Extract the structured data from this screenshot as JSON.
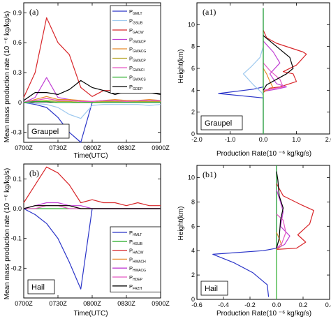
{
  "figure": {
    "ylabel_left": "Mean mass production rate (10 ⁻⁶ kg/kg/s)",
    "y_label_height": "Height(km)",
    "xlabel_time": "Time(UTC)",
    "xlabel_rate": "Production Rate(10 ⁻⁶ kg/kg/s)"
  },
  "chart_data": [
    {
      "id": "a",
      "type": "line",
      "panel_label": "(a)",
      "box_label": "Graupel",
      "xlabel": "Time(UTC)",
      "ylabel": "Mean mass production rate (10 ⁻⁶ kg/kg/s)",
      "x": [
        "07:00",
        "07:10",
        "07:20",
        "07:30",
        "07:40",
        "07:50",
        "08:00",
        "08:10",
        "08:20",
        "08:30",
        "08:40",
        "08:50",
        "09:00"
      ],
      "xticks": [
        "0700Z",
        "0730Z",
        "0800Z",
        "0830Z",
        "0900Z"
      ],
      "xlim": [
        "07:00",
        "09:00"
      ],
      "ylim": [
        -0.4,
        1.0
      ],
      "yticks": [
        "-0.3",
        "0",
        "0.3",
        "0.6",
        "0.9"
      ],
      "series": [
        {
          "name": "P_GMLT",
          "main": "P",
          "sub": "GMLT",
          "color": "#2a34c8",
          "values": [
            0,
            -0.02,
            -0.05,
            -0.15,
            -0.3,
            -0.4,
            0,
            0,
            0,
            0,
            0,
            0,
            0
          ]
        },
        {
          "name": "P_GSUB",
          "main": "P",
          "sub": "GSUB",
          "color": "#9ec9ef",
          "values": [
            0,
            -0.01,
            -0.02,
            -0.05,
            -0.12,
            -0.16,
            -0.03,
            -0.02,
            -0.02,
            -0.02,
            -0.02,
            -0.03,
            -0.02
          ]
        },
        {
          "name": "P_GACW",
          "main": "P",
          "sub": "GACW",
          "color": "#d8262a",
          "values": [
            0.05,
            0.3,
            0.85,
            0.6,
            0.48,
            0.15,
            0.06,
            0.12,
            0.12,
            0.1,
            0.11,
            0.13,
            0.1
          ]
        },
        {
          "name": "P_GWACP",
          "main": "P",
          "sub": "GWACP",
          "color": "#c03fd4",
          "values": [
            0,
            0.05,
            0.25,
            0.05,
            0.03,
            0.01,
            0,
            0.01,
            0.02,
            0.01,
            0.01,
            0.02,
            0.01
          ]
        },
        {
          "name": "P_GWACG",
          "main": "P",
          "sub": "GWACG",
          "color": "#e88a2a",
          "values": [
            0,
            0.03,
            0.06,
            0.03,
            0.03,
            0.02,
            0.01,
            0.02,
            0.03,
            0.02,
            0.02,
            0.03,
            0.02
          ]
        },
        {
          "name": "P_GWACP2",
          "main": "P",
          "sub": "GWACP",
          "color": "#b8a62c",
          "values": [
            0,
            0.01,
            0.02,
            0.01,
            0.01,
            0,
            0,
            0.01,
            0.01,
            0.01,
            0.01,
            0.01,
            0.01
          ]
        },
        {
          "name": "P_GWACI",
          "main": "P",
          "sub": "GWACI",
          "color": "#e357c2",
          "values": [
            0,
            0.02,
            0.04,
            0.02,
            0.02,
            0.01,
            0.01,
            0.02,
            0.02,
            0.01,
            0.02,
            0.02,
            0.02
          ]
        },
        {
          "name": "P_GWACS",
          "main": "P",
          "sub": "GWACS",
          "color": "#2cae2c",
          "values": [
            0,
            0.01,
            0.01,
            0,
            0,
            0,
            0,
            0,
            0,
            0,
            0,
            0,
            0
          ]
        },
        {
          "name": "P_GDEP",
          "main": "P",
          "sub": "GDEP",
          "color": "#000000",
          "values": [
            0.02,
            0.1,
            0.1,
            0.08,
            0.13,
            0.22,
            0.15,
            0.12,
            0.08,
            0.11,
            0.15,
            0.1,
            0.08
          ]
        }
      ]
    },
    {
      "id": "a1",
      "type": "line",
      "panel_label": "(a1)",
      "box_label": "Graupel",
      "xlabel": "Production Rate(10 ⁻⁶ kg/kg/s)",
      "ylabel": "Height(km)",
      "xlim": [
        -2.0,
        2.0
      ],
      "xticks": [
        "-2.0",
        "-1.0",
        "0.0",
        "1.0",
        "2.0"
      ],
      "ylim": [
        0,
        12
      ],
      "yticks": [
        "0",
        "2",
        "4",
        "6",
        "8",
        "10"
      ],
      "series": [
        {
          "name": "P_GMLT",
          "color": "#2a34c8",
          "points": [
            [
              0,
              0
            ],
            [
              0,
              2
            ],
            [
              0,
              3.3
            ],
            [
              -1.35,
              3.7
            ],
            [
              -0.3,
              4.1
            ],
            [
              0,
              4.3
            ],
            [
              0,
              11.5
            ]
          ]
        },
        {
          "name": "P_GSUB",
          "color": "#9ec9ef",
          "points": [
            [
              0,
              0
            ],
            [
              0,
              2
            ],
            [
              0,
              3.5
            ],
            [
              -0.05,
              3.8
            ],
            [
              -0.3,
              4.5
            ],
            [
              -0.6,
              5.5
            ],
            [
              -0.35,
              6.2
            ],
            [
              -0.1,
              7
            ],
            [
              0,
              8
            ]
          ]
        },
        {
          "name": "P_GACW",
          "color": "#d8262a",
          "points": [
            [
              0,
              3.8
            ],
            [
              0.2,
              4.2
            ],
            [
              0.5,
              4.3
            ],
            [
              1,
              4.8
            ],
            [
              0.9,
              5.5
            ],
            [
              0.6,
              5.7
            ],
            [
              1.0,
              6.3
            ],
            [
              1.3,
              7.3
            ],
            [
              1.2,
              7.5
            ],
            [
              0.4,
              8.3
            ],
            [
              0.1,
              8.8
            ],
            [
              0,
              9.5
            ]
          ]
        },
        {
          "name": "P_GWACP",
          "color": "#c03fd4",
          "points": [
            [
              0,
              3.9
            ],
            [
              0.4,
              4.1
            ],
            [
              0.7,
              4.3
            ],
            [
              0.4,
              4.6
            ],
            [
              0.2,
              5.5
            ],
            [
              0.5,
              6.5
            ],
            [
              0.3,
              7.5
            ],
            [
              0,
              8.5
            ]
          ]
        },
        {
          "name": "P_GWACG",
          "color": "#e88a2a",
          "points": [
            [
              0,
              3.9
            ],
            [
              0.3,
              4.2
            ],
            [
              0.2,
              4.8
            ],
            [
              0.1,
              5.5
            ],
            [
              0,
              6
            ]
          ]
        },
        {
          "name": "P_GWACI",
          "color": "#e357c2",
          "points": [
            [
              0,
              4
            ],
            [
              0.6,
              4.3
            ],
            [
              0.5,
              5
            ],
            [
              0.2,
              5.8
            ],
            [
              0,
              6.5
            ]
          ]
        },
        {
          "name": "P_GWACS",
          "color": "#2cae2c",
          "points": [
            [
              0,
              0
            ],
            [
              0,
              11.5
            ]
          ]
        },
        {
          "name": "P_GDEP",
          "color": "#000000",
          "points": [
            [
              0,
              4
            ],
            [
              0.1,
              4.5
            ],
            [
              0.4,
              5
            ],
            [
              0.7,
              5.5
            ],
            [
              0.9,
              6
            ],
            [
              0.8,
              7
            ],
            [
              0.2,
              8.5
            ],
            [
              0,
              9
            ]
          ]
        }
      ]
    },
    {
      "id": "b",
      "type": "line",
      "panel_label": "(b)",
      "box_label": "Hail",
      "xlabel": "Time(UTC)",
      "ylabel": "Mean mass production rate (10 ⁻⁶ kg/kg/s)",
      "x": [
        "07:00",
        "07:10",
        "07:20",
        "07:30",
        "07:40",
        "07:50",
        "08:00",
        "08:10",
        "08:20",
        "08:30",
        "08:40",
        "08:50",
        "09:00"
      ],
      "xticks": [
        "0700Z",
        "0730Z",
        "0800Z",
        "0830Z",
        "0900Z"
      ],
      "xlim": [
        "07:00",
        "09:00"
      ],
      "ylim": [
        -0.3,
        0.15
      ],
      "yticks": [
        "-0.2",
        "-0.1",
        "0.0",
        "0.1"
      ],
      "series": [
        {
          "name": "P_HMLT",
          "main": "P",
          "sub": "HMLT",
          "color": "#2a34c8",
          "values": [
            0,
            -0.02,
            -0.05,
            -0.1,
            -0.18,
            -0.27,
            0,
            0,
            0,
            0,
            0,
            0,
            0
          ]
        },
        {
          "name": "P_HSUB",
          "main": "P",
          "sub": "HSUB",
          "color": "#2cae2c",
          "values": [
            0,
            0,
            0,
            0,
            0,
            0,
            0,
            0,
            0,
            0,
            0,
            0,
            0
          ]
        },
        {
          "name": "P_HACW",
          "main": "P",
          "sub": "HACW",
          "color": "#d8262a",
          "values": [
            0.02,
            0.08,
            0.14,
            0.12,
            0.08,
            0.02,
            0.03,
            0.02,
            0.02,
            0.01,
            0.02,
            0.01,
            0.01
          ]
        },
        {
          "name": "P_HWACH",
          "main": "P",
          "sub": "HWACH",
          "color": "#e88a2a",
          "values": [
            0,
            0.01,
            0.01,
            0.01,
            0.01,
            0,
            0,
            0,
            0,
            0,
            0,
            0,
            0
          ]
        },
        {
          "name": "P_HWACG",
          "main": "P",
          "sub": "HWACG",
          "color": "#c03fd4",
          "values": [
            0,
            0.01,
            0.02,
            0.02,
            0.01,
            0.01,
            0,
            0,
            0,
            0,
            0,
            0,
            0
          ]
        },
        {
          "name": "P_HDEP",
          "main": "P",
          "sub": "HDEP",
          "color": "#e357c2",
          "values": [
            0,
            0,
            0.01,
            0.01,
            0,
            0,
            0,
            0,
            0,
            0,
            0,
            0,
            0
          ]
        },
        {
          "name": "P_FRZH",
          "main": "P",
          "sub": "FRZH",
          "color": "#000000",
          "values": [
            0,
            0.01,
            0.01,
            0.01,
            0.01,
            0,
            0,
            0,
            0,
            0,
            0,
            0,
            0
          ]
        }
      ]
    },
    {
      "id": "b1",
      "type": "line",
      "panel_label": "(b1)",
      "box_label": "Hail",
      "xlabel": "Production Rate(10 ⁻⁶ kg/kg/s)",
      "ylabel": "Height(km)",
      "xlim": [
        -0.6,
        0.4
      ],
      "xticks": [
        "-0.6",
        "-0.4",
        "-0.2",
        "0.0",
        "0.2",
        "0.4"
      ],
      "ylim": [
        0,
        11
      ],
      "yticks": [
        "0",
        "2",
        "4",
        "6",
        "8",
        "10"
      ],
      "series": [
        {
          "name": "P_HMLT",
          "color": "#2a34c8",
          "points": [
            [
              -0.06,
              0.2
            ],
            [
              -0.07,
              1.2
            ],
            [
              -0.18,
              2.2
            ],
            [
              -0.32,
              3
            ],
            [
              -0.48,
              3.7
            ],
            [
              -0.1,
              4.0
            ],
            [
              0,
              4.2
            ],
            [
              0,
              11
            ]
          ]
        },
        {
          "name": "P_HSUB",
          "color": "#2cae2c",
          "points": [
            [
              0,
              0
            ],
            [
              0,
              11
            ]
          ]
        },
        {
          "name": "P_HACW",
          "color": "#d8262a",
          "points": [
            [
              0,
              4.1
            ],
            [
              0.15,
              4.2
            ],
            [
              0.22,
              4.7
            ],
            [
              0.16,
              5.3
            ],
            [
              0.25,
              6.2
            ],
            [
              0.28,
              7.3
            ],
            [
              0.18,
              7.8
            ],
            [
              0.05,
              8.5
            ],
            [
              0,
              9.5
            ]
          ]
        },
        {
          "name": "P_HWACH",
          "color": "#e88a2a",
          "points": [
            [
              0,
              4.1
            ],
            [
              0.04,
              4.4
            ],
            [
              0.02,
              5
            ],
            [
              0,
              5.5
            ]
          ]
        },
        {
          "name": "P_HWACG",
          "color": "#c03fd4",
          "points": [
            [
              0,
              4.2
            ],
            [
              0.06,
              4.5
            ],
            [
              0.1,
              5.2
            ],
            [
              0.03,
              6
            ],
            [
              0.05,
              7.2
            ],
            [
              0.03,
              8
            ],
            [
              0,
              9
            ]
          ]
        },
        {
          "name": "P_HDEP",
          "color": "#e357c2",
          "points": [
            [
              0,
              4.2
            ],
            [
              0.04,
              4.6
            ],
            [
              0.07,
              5.5
            ],
            [
              0.05,
              6.5
            ],
            [
              0,
              7
            ]
          ]
        },
        {
          "name": "P_FRZH",
          "color": "#000000",
          "points": [
            [
              0,
              4.2
            ],
            [
              0.02,
              5
            ],
            [
              0.03,
              6.5
            ],
            [
              0.05,
              7.5
            ],
            [
              0.02,
              8.5
            ],
            [
              0.01,
              9.8
            ],
            [
              0,
              10.5
            ]
          ]
        }
      ]
    }
  ]
}
